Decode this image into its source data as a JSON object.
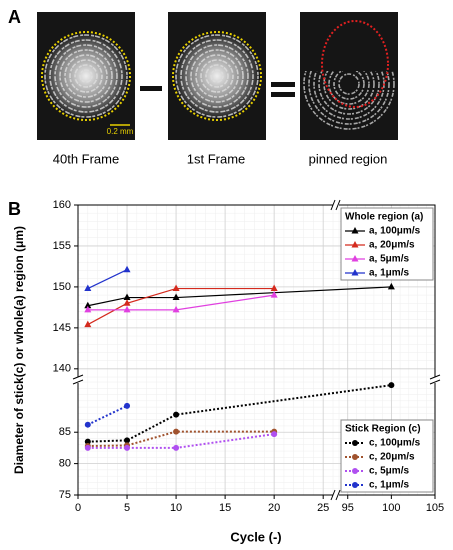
{
  "panel_labels": [
    "A",
    "B"
  ],
  "images": [
    {
      "caption": "40th Frame",
      "scale_bar": "0.2 mm"
    },
    {
      "caption": "1st Frame"
    },
    {
      "caption": "pinned region"
    }
  ],
  "chart_data": {
    "type": "line",
    "x_label": "Cycle (-)",
    "y_label": "Diameter of stick(c) or whole(a) region (μm)",
    "xlim": [
      [
        0,
        26
      ],
      [
        94,
        105
      ]
    ],
    "ylim": [
      [
        75,
        93
      ],
      [
        139,
        160
      ]
    ],
    "xticks": [
      0,
      5,
      10,
      15,
      20,
      25,
      95,
      100,
      105
    ],
    "yticks": [
      75,
      80,
      85,
      140,
      145,
      150,
      155,
      160
    ],
    "grid": true,
    "legends": [
      {
        "title": "Whole region (a)"
      },
      {
        "title": "Stick Region (c)"
      }
    ],
    "series": [
      {
        "name": "a, 100μm/s",
        "color": "#000000",
        "marker": "triangle",
        "dashed": false,
        "legend": 0,
        "x": [
          1,
          5,
          10,
          100
        ],
        "values": [
          147.7,
          148.7,
          148.7,
          150.0
        ]
      },
      {
        "name": "a, 20μm/s",
        "color": "#d42a1e",
        "marker": "triangle",
        "dashed": false,
        "legend": 0,
        "x": [
          1,
          5,
          10,
          20
        ],
        "values": [
          145.4,
          148.0,
          149.8,
          149.8
        ]
      },
      {
        "name": "a, 5μm/s",
        "color": "#e040e0",
        "marker": "triangle",
        "dashed": false,
        "legend": 0,
        "x": [
          1,
          5,
          10,
          20
        ],
        "values": [
          147.2,
          147.2,
          147.2,
          149.0
        ]
      },
      {
        "name": "a, 1μm/s",
        "color": "#2233cc",
        "marker": "triangle",
        "dashed": false,
        "legend": 0,
        "x": [
          1,
          5
        ],
        "values": [
          149.8,
          152.1
        ]
      },
      {
        "name": "c, 100μm/s",
        "color": "#000000",
        "marker": "circle",
        "dashed": true,
        "legend": 1,
        "x": [
          1,
          5,
          10,
          100
        ],
        "values": [
          83.5,
          83.7,
          87.8,
          92.5
        ]
      },
      {
        "name": "c, 20μm/s",
        "color": "#a0522d",
        "marker": "circle",
        "dashed": true,
        "legend": 1,
        "x": [
          1,
          5,
          10,
          20
        ],
        "values": [
          82.8,
          82.9,
          85.1,
          85.1
        ]
      },
      {
        "name": "c, 5μm/s",
        "color": "#b050f0",
        "marker": "circle",
        "dashed": true,
        "legend": 1,
        "x": [
          1,
          5,
          10,
          20
        ],
        "values": [
          82.5,
          82.5,
          82.5,
          84.7
        ]
      },
      {
        "name": "c, 1μm/s",
        "color": "#2233cc",
        "marker": "circle",
        "dashed": true,
        "legend": 1,
        "x": [
          1,
          5
        ],
        "values": [
          86.2,
          89.2
        ]
      }
    ]
  }
}
